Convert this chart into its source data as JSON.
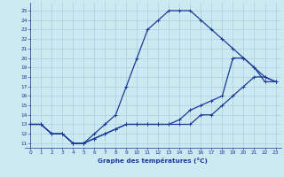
{
  "xlabel": "Graphe des températures (°C)",
  "xlim": [
    -0.5,
    23.5
  ],
  "ylim": [
    10.5,
    25.8
  ],
  "xticks": [
    0,
    1,
    2,
    3,
    4,
    5,
    6,
    7,
    8,
    9,
    10,
    11,
    12,
    13,
    14,
    15,
    16,
    17,
    18,
    19,
    20,
    21,
    22,
    23
  ],
  "yticks": [
    11,
    12,
    13,
    14,
    15,
    16,
    17,
    18,
    19,
    20,
    21,
    22,
    23,
    24,
    25
  ],
  "bg_color": "#cce8f0",
  "line_color": "#1a3a9c",
  "grid_color": "#9ec8d8",
  "line1_x": [
    0,
    1,
    2,
    3,
    4,
    5,
    6,
    7,
    8,
    9,
    10,
    11,
    12,
    13,
    14,
    15,
    16,
    17,
    18,
    19,
    20,
    21,
    22,
    23
  ],
  "line1_y": [
    13,
    13,
    12,
    12,
    11,
    11,
    12,
    13,
    14,
    17,
    20,
    23,
    24,
    25,
    25,
    25,
    24,
    23,
    22,
    21,
    20,
    19,
    17.5,
    17.5
  ],
  "line2_x": [
    0,
    1,
    2,
    3,
    4,
    5,
    6,
    7,
    8,
    9,
    10,
    11,
    12,
    13,
    14,
    15,
    16,
    17,
    18,
    19,
    20,
    21,
    22,
    23
  ],
  "line2_y": [
    13,
    13,
    12,
    12,
    11,
    11,
    11.5,
    12,
    12.5,
    13,
    13,
    13,
    13,
    13,
    13,
    13,
    14,
    14,
    15,
    16,
    17,
    18,
    18,
    17.5
  ],
  "line3_x": [
    0,
    1,
    2,
    3,
    4,
    5,
    6,
    7,
    8,
    9,
    10,
    11,
    12,
    13,
    14,
    15,
    16,
    17,
    18,
    19,
    20,
    21,
    22,
    23
  ],
  "line3_y": [
    13,
    13,
    12,
    12,
    11,
    11,
    11.5,
    12,
    12.5,
    13,
    13,
    13,
    13,
    13,
    13.5,
    14.5,
    15,
    15.5,
    16,
    20,
    20,
    19,
    18,
    17.5
  ]
}
